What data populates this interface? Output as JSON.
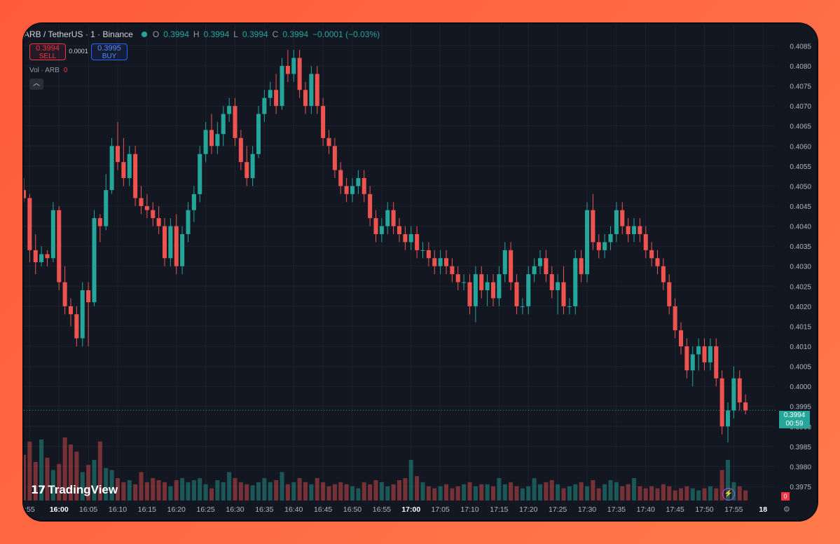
{
  "header": {
    "symbol": "ARB / TetherUS · 1 · Binance",
    "open_label": "O",
    "open": "0.3994",
    "high_label": "H",
    "high": "0.3994",
    "low_label": "L",
    "low": "0.3994",
    "close_label": "C",
    "close": "0.3994",
    "change": "−0.0001 (−0.03%)"
  },
  "trade": {
    "sell_price": "0.3994",
    "sell_label": "SELL",
    "spread": "0.0001",
    "buy_price": "0.3995",
    "buy_label": "BUY"
  },
  "volume_label": "Vol · ARB",
  "volume_value": "0",
  "collapse_icon": "chevron-up-icon",
  "logo_text": "TradingView",
  "last_price": {
    "price": "0.3994",
    "countdown": "00:59"
  },
  "volume_tag": "0",
  "colors": {
    "up": "#26a69a",
    "down": "#ef5350",
    "background": "#131722",
    "grid": "#1e222d"
  },
  "chart_data": {
    "type": "candlestick",
    "y_axis_labels": [
      "0.4085",
      "0.4080",
      "0.4075",
      "0.4070",
      "0.4065",
      "0.4060",
      "0.4055",
      "0.4050",
      "0.4045",
      "0.4040",
      "0.4035",
      "0.4030",
      "0.4025",
      "0.4020",
      "0.4015",
      "0.4010",
      "0.4005",
      "0.4000",
      "0.3995",
      "0.3990",
      "0.3985",
      "0.3980",
      "0.3975"
    ],
    "x_axis_labels": [
      {
        "t": -5,
        "label": ":55"
      },
      {
        "t": 0,
        "label": "16:00",
        "bold": true
      },
      {
        "t": 5,
        "label": "16:05"
      },
      {
        "t": 10,
        "label": "16:10"
      },
      {
        "t": 15,
        "label": "16:15"
      },
      {
        "t": 20,
        "label": "16:20"
      },
      {
        "t": 25,
        "label": "16:25"
      },
      {
        "t": 30,
        "label": "16:30"
      },
      {
        "t": 35,
        "label": "16:35"
      },
      {
        "t": 40,
        "label": "16:40"
      },
      {
        "t": 45,
        "label": "16:45"
      },
      {
        "t": 50,
        "label": "16:50"
      },
      {
        "t": 55,
        "label": "16:55"
      },
      {
        "t": 60,
        "label": "17:00",
        "bold": true
      },
      {
        "t": 65,
        "label": "17:05"
      },
      {
        "t": 70,
        "label": "17:10"
      },
      {
        "t": 75,
        "label": "17:15"
      },
      {
        "t": 80,
        "label": "17:20"
      },
      {
        "t": 85,
        "label": "17:25"
      },
      {
        "t": 90,
        "label": "17:30"
      },
      {
        "t": 95,
        "label": "17:35"
      },
      {
        "t": 100,
        "label": "17:40"
      },
      {
        "t": 105,
        "label": "17:45"
      },
      {
        "t": 110,
        "label": "17:50"
      },
      {
        "t": 115,
        "label": "17:55"
      },
      {
        "t": 120,
        "label": "18",
        "bold": true
      }
    ],
    "y_range": [
      0.39715,
      0.40905
    ],
    "x_range": [
      -6,
      122
    ],
    "last_price_line": 0.3994,
    "candles": [
      [
        -6,
        0.4049,
        0.4052,
        0.4046,
        0.4047,
        45
      ],
      [
        -5,
        0.4047,
        0.4048,
        0.4031,
        0.4034,
        58
      ],
      [
        -4,
        0.4034,
        0.4038,
        0.4028,
        0.4031,
        38
      ],
      [
        -3,
        0.4031,
        0.4035,
        0.403,
        0.4033,
        60
      ],
      [
        -2,
        0.4033,
        0.4034,
        0.403,
        0.4032,
        42
      ],
      [
        -1,
        0.4032,
        0.4046,
        0.4031,
        0.4044,
        30
      ],
      [
        0,
        0.4044,
        0.4045,
        0.4024,
        0.4026,
        36
      ],
      [
        1,
        0.4026,
        0.403,
        0.4018,
        0.402,
        62
      ],
      [
        2,
        0.402,
        0.4022,
        0.4015,
        0.4018,
        55
      ],
      [
        3,
        0.4018,
        0.402,
        0.401,
        0.4012,
        48
      ],
      [
        4,
        0.4012,
        0.4026,
        0.401,
        0.4024,
        28
      ],
      [
        5,
        0.4024,
        0.4026,
        0.401,
        0.4021,
        35
      ],
      [
        6,
        0.4021,
        0.4044,
        0.402,
        0.4042,
        40
      ],
      [
        7,
        0.4042,
        0.4043,
        0.4036,
        0.404,
        58
      ],
      [
        8,
        0.404,
        0.4053,
        0.4039,
        0.4049,
        32
      ],
      [
        9,
        0.4049,
        0.4062,
        0.4048,
        0.406,
        30
      ],
      [
        10,
        0.406,
        0.4066,
        0.4054,
        0.4056,
        22
      ],
      [
        11,
        0.4056,
        0.4062,
        0.405,
        0.4052,
        18
      ],
      [
        12,
        0.4052,
        0.406,
        0.405,
        0.4058,
        20
      ],
      [
        13,
        0.4058,
        0.406,
        0.4045,
        0.4047,
        16
      ],
      [
        14,
        0.4047,
        0.405,
        0.4043,
        0.4045,
        28
      ],
      [
        15,
        0.4045,
        0.4048,
        0.4042,
        0.4044,
        18
      ],
      [
        16,
        0.4044,
        0.4046,
        0.404,
        0.4042,
        22
      ],
      [
        17,
        0.4042,
        0.4045,
        0.4038,
        0.404,
        20
      ],
      [
        18,
        0.404,
        0.4042,
        0.403,
        0.4032,
        18
      ],
      [
        19,
        0.4032,
        0.4042,
        0.403,
        0.404,
        14
      ],
      [
        20,
        0.404,
        0.4043,
        0.4028,
        0.403,
        20
      ],
      [
        21,
        0.403,
        0.404,
        0.4028,
        0.4038,
        22
      ],
      [
        22,
        0.4038,
        0.4046,
        0.4036,
        0.4044,
        18
      ],
      [
        23,
        0.4044,
        0.405,
        0.4041,
        0.4048,
        20
      ],
      [
        24,
        0.4048,
        0.406,
        0.4046,
        0.4058,
        22
      ],
      [
        25,
        0.4058,
        0.4066,
        0.4056,
        0.4064,
        16
      ],
      [
        26,
        0.4064,
        0.4068,
        0.4058,
        0.406,
        12
      ],
      [
        27,
        0.406,
        0.4066,
        0.4058,
        0.4063,
        20
      ],
      [
        28,
        0.4063,
        0.407,
        0.406,
        0.4068,
        18
      ],
      [
        29,
        0.4068,
        0.4072,
        0.4066,
        0.407,
        28
      ],
      [
        30,
        0.407,
        0.4072,
        0.406,
        0.4062,
        22
      ],
      [
        31,
        0.4062,
        0.4064,
        0.4054,
        0.4056,
        18
      ],
      [
        32,
        0.4056,
        0.406,
        0.405,
        0.4052,
        16
      ],
      [
        33,
        0.4052,
        0.406,
        0.405,
        0.4058,
        15
      ],
      [
        34,
        0.4058,
        0.407,
        0.4057,
        0.4068,
        18
      ],
      [
        35,
        0.4068,
        0.4074,
        0.4066,
        0.4072,
        22
      ],
      [
        36,
        0.4072,
        0.4076,
        0.407,
        0.4074,
        18
      ],
      [
        37,
        0.4074,
        0.4078,
        0.4068,
        0.407,
        20
      ],
      [
        38,
        0.407,
        0.4082,
        0.4069,
        0.408,
        28
      ],
      [
        39,
        0.408,
        0.4084,
        0.4076,
        0.4078,
        16
      ],
      [
        40,
        0.4078,
        0.4084,
        0.4076,
        0.4082,
        18
      ],
      [
        41,
        0.4082,
        0.4084,
        0.4072,
        0.4074,
        22
      ],
      [
        42,
        0.4074,
        0.4076,
        0.4068,
        0.407,
        18
      ],
      [
        43,
        0.407,
        0.408,
        0.4068,
        0.4078,
        16
      ],
      [
        44,
        0.4078,
        0.408,
        0.4068,
        0.407,
        22
      ],
      [
        45,
        0.407,
        0.4072,
        0.406,
        0.4062,
        18
      ],
      [
        46,
        0.4062,
        0.4064,
        0.4058,
        0.406,
        14
      ],
      [
        47,
        0.406,
        0.4062,
        0.4052,
        0.4054,
        16
      ],
      [
        48,
        0.4054,
        0.4056,
        0.4048,
        0.405,
        18
      ],
      [
        49,
        0.405,
        0.4052,
        0.4046,
        0.4048,
        16
      ],
      [
        50,
        0.4048,
        0.4052,
        0.4046,
        0.405,
        14
      ],
      [
        51,
        0.405,
        0.4054,
        0.4048,
        0.4052,
        12
      ],
      [
        52,
        0.4052,
        0.4054,
        0.4046,
        0.4048,
        18
      ],
      [
        53,
        0.4048,
        0.405,
        0.404,
        0.4042,
        16
      ],
      [
        54,
        0.4042,
        0.4044,
        0.4036,
        0.4038,
        20
      ],
      [
        55,
        0.4038,
        0.4042,
        0.4036,
        0.404,
        18
      ],
      [
        56,
        0.404,
        0.4046,
        0.4038,
        0.4044,
        14
      ],
      [
        57,
        0.4044,
        0.4046,
        0.4038,
        0.404,
        16
      ],
      [
        58,
        0.404,
        0.4042,
        0.4036,
        0.4038,
        20
      ],
      [
        59,
        0.4038,
        0.404,
        0.4034,
        0.4036,
        22
      ],
      [
        60,
        0.4036,
        0.404,
        0.4034,
        0.4038,
        40
      ],
      [
        61,
        0.4038,
        0.404,
        0.4032,
        0.4034,
        24
      ],
      [
        62,
        0.4034,
        0.4036,
        0.4032,
        0.4034,
        18
      ],
      [
        63,
        0.4034,
        0.4036,
        0.403,
        0.4032,
        14
      ],
      [
        64,
        0.4032,
        0.4034,
        0.4028,
        0.403,
        12
      ],
      [
        65,
        0.403,
        0.4034,
        0.4028,
        0.4032,
        14
      ],
      [
        66,
        0.4032,
        0.4034,
        0.4028,
        0.403,
        16
      ],
      [
        67,
        0.403,
        0.4032,
        0.4026,
        0.4028,
        12
      ],
      [
        68,
        0.4028,
        0.403,
        0.4024,
        0.4026,
        14
      ],
      [
        69,
        0.4026,
        0.4028,
        0.4024,
        0.4026,
        16
      ],
      [
        70,
        0.4026,
        0.4028,
        0.4018,
        0.402,
        18
      ],
      [
        71,
        0.402,
        0.403,
        0.4016,
        0.4028,
        14
      ],
      [
        72,
        0.4028,
        0.403,
        0.4022,
        0.4024,
        16
      ],
      [
        73,
        0.4024,
        0.4028,
        0.402,
        0.4026,
        16
      ],
      [
        74,
        0.4026,
        0.4028,
        0.402,
        0.4022,
        14
      ],
      [
        75,
        0.4022,
        0.403,
        0.402,
        0.4028,
        22
      ],
      [
        76,
        0.4028,
        0.4036,
        0.4026,
        0.4034,
        16
      ],
      [
        77,
        0.4034,
        0.4036,
        0.4024,
        0.4026,
        18
      ],
      [
        78,
        0.4026,
        0.4028,
        0.4018,
        0.402,
        14
      ],
      [
        79,
        0.402,
        0.4022,
        0.4018,
        0.402,
        12
      ],
      [
        80,
        0.402,
        0.403,
        0.4018,
        0.4028,
        14
      ],
      [
        81,
        0.4028,
        0.4032,
        0.4026,
        0.403,
        22
      ],
      [
        82,
        0.403,
        0.4034,
        0.4028,
        0.4032,
        16
      ],
      [
        83,
        0.4032,
        0.4034,
        0.4026,
        0.4028,
        18
      ],
      [
        84,
        0.4028,
        0.403,
        0.4022,
        0.4024,
        20
      ],
      [
        85,
        0.4024,
        0.4028,
        0.4018,
        0.4026,
        16
      ],
      [
        86,
        0.4026,
        0.403,
        0.4018,
        0.402,
        12
      ],
      [
        87,
        0.402,
        0.4022,
        0.4018,
        0.402,
        14
      ],
      [
        88,
        0.402,
        0.4034,
        0.4018,
        0.4032,
        16
      ],
      [
        89,
        0.4032,
        0.4034,
        0.4026,
        0.4028,
        18
      ],
      [
        90,
        0.4028,
        0.4046,
        0.4026,
        0.4044,
        14
      ],
      [
        91,
        0.4044,
        0.4048,
        0.4034,
        0.4036,
        20
      ],
      [
        92,
        0.4036,
        0.4038,
        0.4032,
        0.4034,
        12
      ],
      [
        93,
        0.4034,
        0.4038,
        0.4032,
        0.4036,
        16
      ],
      [
        94,
        0.4036,
        0.404,
        0.4034,
        0.4038,
        20
      ],
      [
        95,
        0.4038,
        0.4046,
        0.4036,
        0.4044,
        18
      ],
      [
        96,
        0.4044,
        0.4046,
        0.4038,
        0.404,
        14
      ],
      [
        97,
        0.404,
        0.4042,
        0.4036,
        0.4038,
        16
      ],
      [
        98,
        0.4038,
        0.4042,
        0.4036,
        0.404,
        22
      ],
      [
        99,
        0.404,
        0.4042,
        0.4036,
        0.4038,
        14
      ],
      [
        100,
        0.4038,
        0.404,
        0.4032,
        0.4034,
        12
      ],
      [
        101,
        0.4034,
        0.4036,
        0.403,
        0.4032,
        14
      ],
      [
        102,
        0.4032,
        0.4034,
        0.4028,
        0.403,
        12
      ],
      [
        103,
        0.403,
        0.4032,
        0.4024,
        0.4026,
        16
      ],
      [
        104,
        0.4026,
        0.4028,
        0.4018,
        0.402,
        14
      ],
      [
        105,
        0.402,
        0.4022,
        0.4012,
        0.4014,
        10
      ],
      [
        106,
        0.4014,
        0.4016,
        0.4008,
        0.401,
        12
      ],
      [
        107,
        0.401,
        0.4012,
        0.4002,
        0.4004,
        14
      ],
      [
        108,
        0.4004,
        0.401,
        0.4,
        0.4008,
        12
      ],
      [
        109,
        0.4008,
        0.4012,
        0.4004,
        0.401,
        10
      ],
      [
        110,
        0.401,
        0.4012,
        0.4004,
        0.4006,
        12
      ],
      [
        111,
        0.4006,
        0.4012,
        0.4004,
        0.401,
        14
      ],
      [
        112,
        0.401,
        0.4012,
        0.4,
        0.4002,
        12
      ],
      [
        113,
        0.4002,
        0.4004,
        0.3988,
        0.399,
        30
      ],
      [
        114,
        0.399,
        0.3996,
        0.3986,
        0.3994,
        40
      ],
      [
        115,
        0.3994,
        0.4005,
        0.3992,
        0.4002,
        18
      ],
      [
        116,
        0.4002,
        0.4004,
        0.3994,
        0.3996,
        14
      ],
      [
        117,
        0.3996,
        0.3998,
        0.3993,
        0.3994,
        10
      ]
    ]
  }
}
